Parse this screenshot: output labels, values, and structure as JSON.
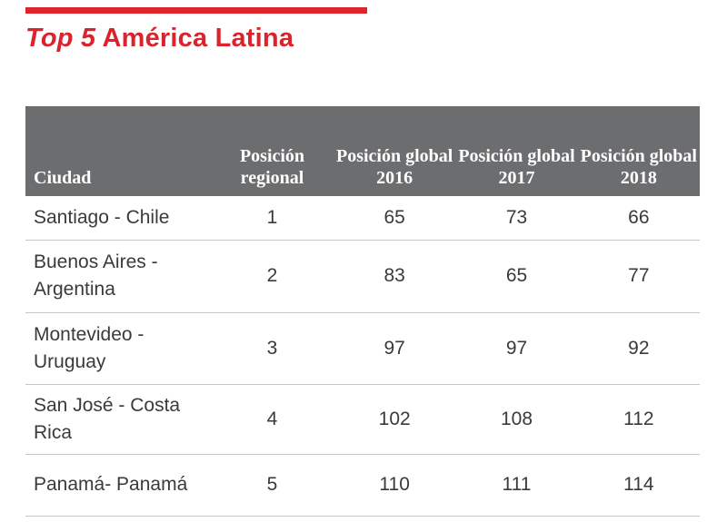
{
  "header": {
    "title_lead": "Top 5",
    "title_rest": "América Latina"
  },
  "table": {
    "columns": {
      "city": "Ciudad",
      "regional": "Posición regional",
      "g2016": "Posición global 2016",
      "g2017": "Posición global 2017",
      "g2018": "Posición global 2018"
    },
    "rows": [
      {
        "city": "Santiago - Chile",
        "regional": "1",
        "g2016": "65",
        "g2017": "73",
        "g2018": "66"
      },
      {
        "city": "Buenos Aires - Argentina",
        "regional": "2",
        "g2016": "83",
        "g2017": "65",
        "g2018": "77"
      },
      {
        "city": "Montevideo - Uruguay",
        "regional": "3",
        "g2016": "97",
        "g2017": "97",
        "g2018": "92"
      },
      {
        "city": "San José - Costa Rica",
        "regional": "4",
        "g2016": "102",
        "g2017": "108",
        "g2018": "112"
      },
      {
        "city": "Panamá- Panamá",
        "regional": "5",
        "g2016": "110",
        "g2017": "111",
        "g2018": "114"
      }
    ]
  },
  "colors": {
    "accent_red": "#e0242c",
    "header_gray": "#6c6d6f"
  }
}
